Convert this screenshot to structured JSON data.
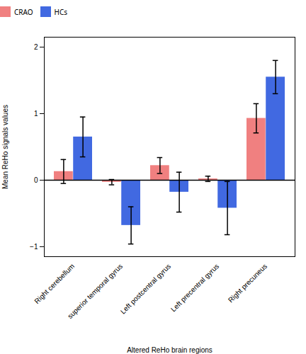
{
  "chart_data": {
    "type": "bar",
    "categories": [
      "Right cerebellum",
      "superior temporal gyrus",
      "Left postcentral gyrus",
      "Left precentral gyrus",
      "Right precuneus"
    ],
    "series": [
      {
        "name": "CRAO",
        "color": "#F08080",
        "values": [
          0.13,
          -0.03,
          0.22,
          0.02,
          0.93
        ],
        "errors": [
          0.18,
          0.04,
          0.12,
          0.04,
          0.22
        ]
      },
      {
        "name": "HCs",
        "color": "#4169E1",
        "values": [
          0.65,
          -0.68,
          -0.18,
          -0.42,
          1.55
        ],
        "errors": [
          0.3,
          0.28,
          0.3,
          0.4,
          0.25
        ]
      }
    ],
    "xlabel": "Altered ReHo brain regions",
    "ylabel": "Mean ReHo signals values",
    "ylim": [
      -1.15,
      2.15
    ],
    "yticks": [
      -1,
      0,
      1,
      2
    ],
    "legend": "top",
    "grid": false
  }
}
